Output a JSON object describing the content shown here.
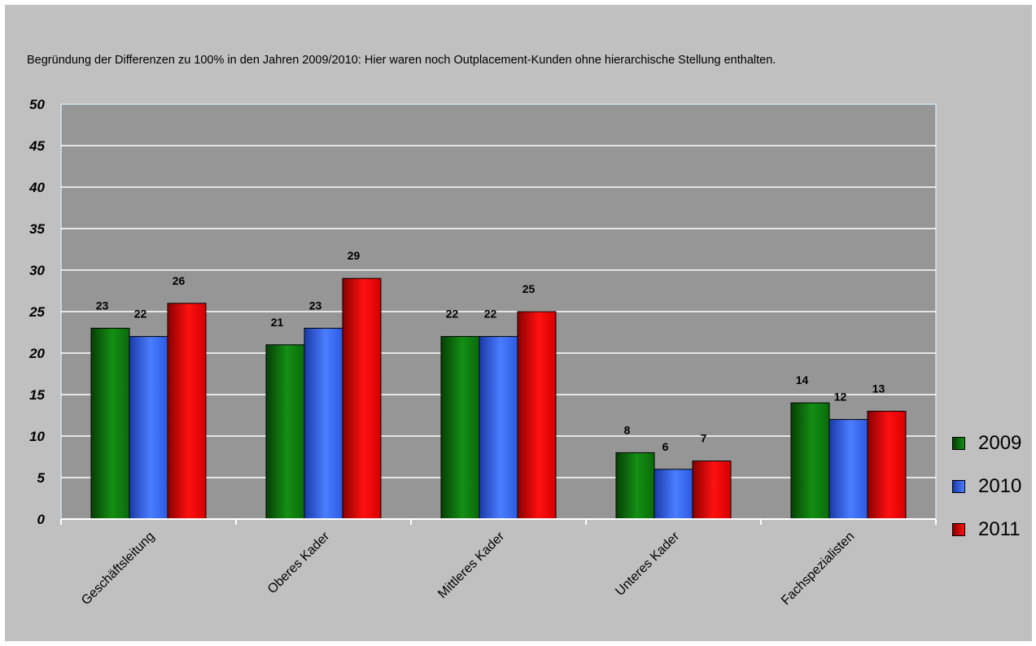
{
  "note": "Begründung der Differenzen zu 100% in den Jahren 2009/2010: Hier waren noch Outplacement-Kunden ohne hierarchische Stellung enthalten.",
  "chart_data": {
    "type": "bar",
    "title": "",
    "xlabel": "",
    "ylabel": "",
    "ylim": [
      0,
      50
    ],
    "yticks": [
      0,
      5,
      10,
      15,
      20,
      25,
      30,
      35,
      40,
      45,
      50
    ],
    "grid": true,
    "legend_position": "right",
    "categories": [
      "Geschäftsleitung",
      "Oberes Kader",
      "Mittleres Kader",
      "Unteres Kader",
      "Fachspezialisten"
    ],
    "series": [
      {
        "name": "2009",
        "color": "#0e7a0e",
        "values": [
          23,
          21,
          22,
          8,
          14
        ]
      },
      {
        "name": "2010",
        "color": "#3366ee",
        "values": [
          22,
          23,
          22,
          6,
          12
        ]
      },
      {
        "name": "2011",
        "color": "#e00000",
        "values": [
          26,
          29,
          25,
          7,
          13
        ]
      }
    ]
  }
}
